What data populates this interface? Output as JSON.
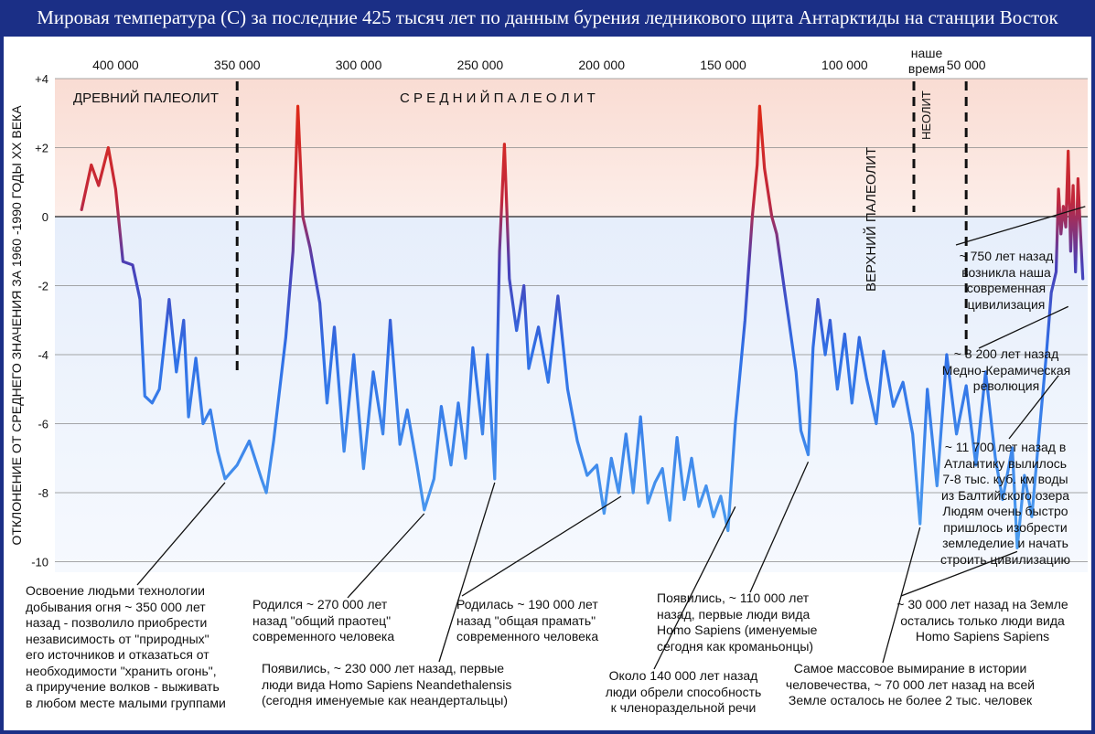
{
  "title": "Мировая температура (С) за последние 425 тысяч лет по данным бурения ледникового щита Антарктиды на станции Восток",
  "colors": {
    "frame": "#1b2f86",
    "warm": "#fbe1da",
    "cold": "#e6eefb",
    "line_warm": "#e02a16",
    "line_cold": "#2f6fe6"
  },
  "chart_data": {
    "type": "line",
    "title": "Мировая температура (С) за последние 425 тысяч лет по данным бурения ледникового щита Антарктиды на станции Восток",
    "ylabel": "ОТКЛОНЕНИЕ ОТ СРЕДНЕГО ЗНАЧЕНИЯ ЗА 1960 -1990 ГОДЫ XX ВЕКА",
    "xlabel": "",
    "x_ticks": [
      {
        "value": 400000,
        "label": "400 000"
      },
      {
        "value": 350000,
        "label": "350 000"
      },
      {
        "value": 300000,
        "label": "300 000"
      },
      {
        "value": 250000,
        "label": "250 000"
      },
      {
        "value": 200000,
        "label": "200 000"
      },
      {
        "value": 150000,
        "label": "150 000"
      },
      {
        "value": 100000,
        "label": "100 000"
      },
      {
        "value": 50000,
        "label": "50 000"
      },
      {
        "value": 0,
        "label": "наше время"
      }
    ],
    "y_ticks": [
      {
        "value": 4,
        "label": "+4"
      },
      {
        "value": 2,
        "label": "+2"
      },
      {
        "value": 0,
        "label": "0"
      },
      {
        "value": -2,
        "label": "-2"
      },
      {
        "value": -4,
        "label": "-4"
      },
      {
        "value": -6,
        "label": "-6"
      },
      {
        "value": -8,
        "label": "-8"
      },
      {
        "value": -10,
        "label": "-10"
      }
    ],
    "xlim": [
      425000,
      0
    ],
    "ylim": [
      -10.5,
      4
    ],
    "grid": true,
    "x_reversed": true,
    "series": [
      {
        "values": [
          [
            414000,
            0.2
          ],
          [
            410000,
            1.5
          ],
          [
            407000,
            0.9
          ],
          [
            403000,
            2.0
          ],
          [
            400000,
            0.8
          ],
          [
            397000,
            -1.3
          ],
          [
            393000,
            -1.4
          ],
          [
            390000,
            -2.4
          ],
          [
            388000,
            -5.2
          ],
          [
            385000,
            -5.4
          ],
          [
            382000,
            -5.0
          ],
          [
            378000,
            -2.4
          ],
          [
            375000,
            -4.5
          ],
          [
            372000,
            -3.0
          ],
          [
            370000,
            -5.8
          ],
          [
            367000,
            -4.1
          ],
          [
            364000,
            -6.0
          ],
          [
            361000,
            -5.6
          ],
          [
            358000,
            -6.8
          ],
          [
            355000,
            -7.6
          ],
          [
            350000,
            -7.2
          ],
          [
            345000,
            -6.5
          ],
          [
            340000,
            -7.6
          ],
          [
            338000,
            -8.0
          ],
          [
            335000,
            -6.5
          ],
          [
            330000,
            -3.5
          ],
          [
            327000,
            -1.0
          ],
          [
            325000,
            3.2
          ],
          [
            323000,
            0.0
          ],
          [
            320000,
            -0.9
          ],
          [
            316000,
            -2.5
          ],
          [
            313000,
            -5.4
          ],
          [
            310000,
            -3.2
          ],
          [
            306000,
            -6.8
          ],
          [
            302000,
            -4.0
          ],
          [
            298000,
            -7.3
          ],
          [
            294000,
            -4.5
          ],
          [
            290000,
            -6.3
          ],
          [
            287000,
            -3.0
          ],
          [
            283000,
            -6.6
          ],
          [
            280000,
            -5.6
          ],
          [
            276000,
            -7.2
          ],
          [
            273000,
            -8.5
          ],
          [
            269000,
            -7.6
          ],
          [
            266000,
            -5.5
          ],
          [
            262000,
            -7.2
          ],
          [
            259000,
            -5.4
          ],
          [
            256000,
            -7.0
          ],
          [
            253000,
            -3.8
          ],
          [
            249000,
            -6.3
          ],
          [
            247000,
            -4.0
          ],
          [
            244000,
            -7.6
          ],
          [
            242000,
            -1.0
          ],
          [
            240000,
            2.1
          ],
          [
            238000,
            -1.8
          ],
          [
            235000,
            -3.3
          ],
          [
            232000,
            -2.0
          ],
          [
            230000,
            -4.4
          ],
          [
            226000,
            -3.2
          ],
          [
            222000,
            -4.8
          ],
          [
            218000,
            -2.3
          ],
          [
            214000,
            -5.0
          ],
          [
            210000,
            -6.5
          ],
          [
            206000,
            -7.5
          ],
          [
            202000,
            -7.2
          ],
          [
            199000,
            -8.6
          ],
          [
            196000,
            -7.0
          ],
          [
            193000,
            -8.0
          ],
          [
            190000,
            -6.3
          ],
          [
            187000,
            -8.0
          ],
          [
            184000,
            -5.8
          ],
          [
            181000,
            -8.3
          ],
          [
            178000,
            -7.7
          ],
          [
            175000,
            -7.3
          ],
          [
            172000,
            -8.8
          ],
          [
            169000,
            -6.4
          ],
          [
            166000,
            -8.2
          ],
          [
            163000,
            -7.0
          ],
          [
            160000,
            -8.4
          ],
          [
            157000,
            -7.8
          ],
          [
            154000,
            -8.7
          ],
          [
            151000,
            -8.1
          ],
          [
            148000,
            -9.1
          ],
          [
            145000,
            -6.0
          ],
          [
            141000,
            -3.0
          ],
          [
            138000,
            0.0
          ],
          [
            136000,
            1.5
          ],
          [
            135000,
            3.2
          ],
          [
            133000,
            1.4
          ],
          [
            130000,
            0.0
          ],
          [
            128000,
            -0.5
          ],
          [
            125000,
            -2.0
          ],
          [
            123000,
            -3.0
          ],
          [
            120000,
            -4.5
          ],
          [
            118000,
            -6.2
          ],
          [
            115000,
            -6.9
          ],
          [
            113000,
            -3.8
          ],
          [
            111000,
            -2.4
          ],
          [
            108000,
            -4.0
          ],
          [
            106000,
            -3.0
          ],
          [
            103000,
            -5.0
          ],
          [
            100000,
            -3.4
          ],
          [
            97000,
            -5.4
          ],
          [
            94000,
            -3.5
          ],
          [
            91000,
            -4.7
          ],
          [
            87000,
            -6.0
          ],
          [
            84000,
            -3.9
          ],
          [
            80000,
            -5.5
          ],
          [
            76000,
            -4.8
          ],
          [
            72000,
            -6.3
          ],
          [
            69000,
            -8.9
          ],
          [
            66000,
            -5.0
          ],
          [
            62000,
            -7.8
          ],
          [
            58000,
            -4.0
          ],
          [
            54000,
            -6.3
          ],
          [
            50000,
            -4.9
          ],
          [
            46000,
            -7.2
          ],
          [
            42000,
            -4.5
          ],
          [
            38000,
            -7.0
          ],
          [
            35000,
            -8.2
          ],
          [
            31000,
            -6.7
          ],
          [
            29000,
            -9.6
          ],
          [
            26000,
            -7.5
          ],
          [
            23000,
            -8.7
          ],
          [
            20000,
            -6.3
          ],
          [
            17000,
            -4.0
          ],
          [
            15000,
            -2.2
          ],
          [
            13000,
            -1.6
          ],
          [
            12000,
            0.8
          ],
          [
            11000,
            -0.5
          ],
          [
            10000,
            0.3
          ],
          [
            9000,
            -0.3
          ],
          [
            8000,
            1.9
          ],
          [
            7000,
            -1.0
          ],
          [
            6000,
            0.9
          ],
          [
            5000,
            -1.6
          ],
          [
            4000,
            1.1
          ],
          [
            3000,
            -0.4
          ],
          [
            2000,
            -1.8
          ]
        ]
      }
    ],
    "period_labels": [
      {
        "text": "ДРЕВНИЙ ПАЛЕОЛИТ",
        "orientation": "horizontal"
      },
      {
        "text": "С Р Е Д Н И Й       П А Л Е О Л И Т",
        "orientation": "horizontal"
      },
      {
        "text": "ВЕРХНИЙ ПАЛЕОЛИТ",
        "orientation": "vertical"
      },
      {
        "text": "НЕОЛИТ",
        "orientation": "vertical"
      }
    ],
    "boundaries": [
      350000,
      50000,
      13000
    ],
    "annotations": [
      {
        "id": "fire",
        "target": [
          355000,
          -7.6
        ],
        "lines": [
          "Освоение людьми технологии",
          "добывания огня ~ 350 000 лет",
          "назад - позволило приобрести",
          "независимость от \"природных\"",
          "его источников и отказаться от",
          "необходимости \"хранить огонь\",",
          "а приручение волков - выживать",
          "в любом месте малыми группами"
        ]
      },
      {
        "id": "praotec",
        "target": [
          273000,
          -8.5
        ],
        "lines": [
          "Родился ~ 270 000 лет",
          "назад \"общий праотец\"",
          "современного человека"
        ]
      },
      {
        "id": "neander",
        "target": [
          244000,
          -7.6
        ],
        "lines": [
          "Появились, ~ 230 000 лет назад, первые",
          "люди вида Homo Sapiens Neandethalensis",
          "(сегодня именуемые как неандертальцы)"
        ]
      },
      {
        "id": "pramat",
        "target": [
          192000,
          -8.0
        ],
        "lines": [
          "Родилась ~ 190 000 лет",
          "назад \"общая прамать\"",
          "современного человека"
        ]
      },
      {
        "id": "speech",
        "target": [
          145000,
          -8.3
        ],
        "lines": [
          "Около 140 000 лет назад",
          "люди обрели способность",
          "к членораздельной речи"
        ]
      },
      {
        "id": "cromagnon",
        "target": [
          115000,
          -7.0
        ],
        "lines": [
          "Появились, ~ 110 000 лет",
          "назад, первые люди вида",
          "Homo Sapiens (именуемые",
          "сегодня как кроманьонцы)"
        ]
      },
      {
        "id": "extinction",
        "target": [
          69000,
          -8.9
        ],
        "lines": [
          "Самое массовое вымирание в истории",
          "человечества, ~ 70 000 лет назад на всей",
          "Земле осталось не более 2 тыс. человек"
        ]
      },
      {
        "id": "sapiens",
        "target": [
          29000,
          -9.6
        ],
        "lines": [
          "~ 30 000 лет назад на Земле",
          "остались только люди вида",
          "Homo Sapiens Sapiens"
        ]
      },
      {
        "id": "atlantic",
        "target": [
          12000,
          -4.5
        ],
        "lines": [
          "~ 11 700 лет назад в",
          "Атлантику вылилось",
          "7-8 тыс. куб. км воды",
          "из Балтийского озера",
          "Людям очень быстро",
          "пришлось изобрести",
          "земледелие и начать",
          "строить цивилизацию"
        ]
      },
      {
        "id": "copper",
        "target": [
          8000,
          -2.5
        ],
        "lines": [
          "~ 8 200 лет назад",
          "Медно-Керамическая",
          "революция"
        ]
      },
      {
        "id": "modern",
        "target": [
          1000,
          0.4
        ],
        "lines": [
          "~ 750 лет назад",
          "возникла наша",
          "современная",
          "цивилизация"
        ]
      }
    ]
  }
}
